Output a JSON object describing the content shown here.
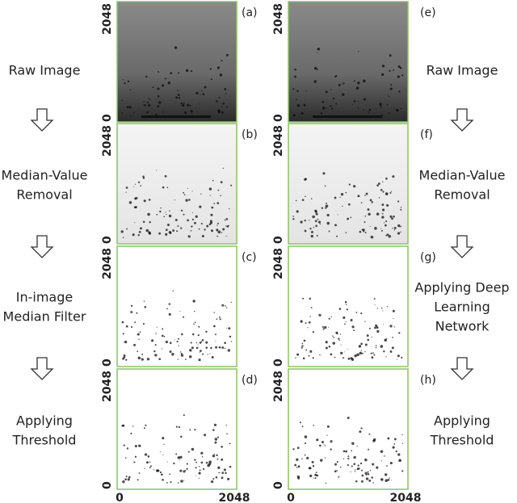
{
  "left": {
    "steps": [
      [
        "Raw Image"
      ],
      [
        "Median-Value",
        "Removal"
      ],
      [
        "In-image",
        "Median Filter"
      ],
      [
        "Applying",
        "Threshold"
      ]
    ]
  },
  "right": {
    "steps": [
      [
        "Raw Image"
      ],
      [
        "Median-Value",
        "Removal"
      ],
      [
        "Applying Deep",
        "Learning",
        "Network"
      ],
      [
        "Applying",
        "Threshold"
      ]
    ]
  },
  "panels": {
    "labels": [
      "(a)",
      "(b)",
      "(c)",
      "(d)",
      "(e)",
      "(f)",
      "(g)",
      "(h)"
    ]
  },
  "axes": {
    "y_top": "2048",
    "y_bottom": "0",
    "x_left": "0",
    "x_right": "2048"
  }
}
